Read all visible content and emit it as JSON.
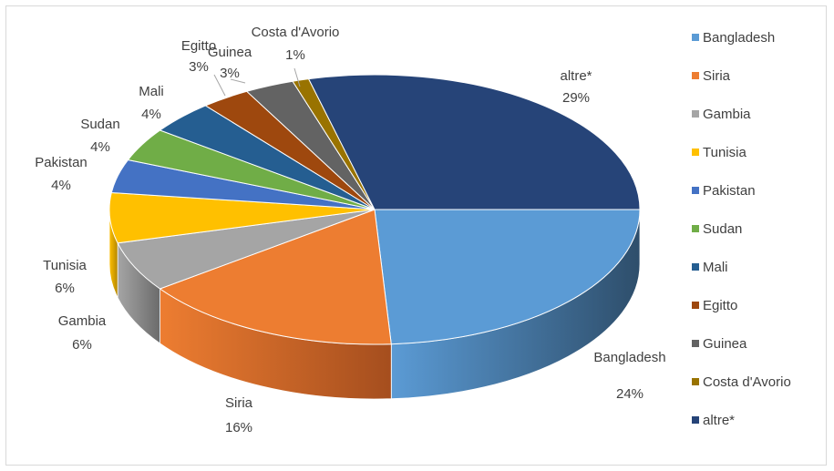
{
  "chart_data": {
    "type": "pie",
    "style": "3d",
    "legend_position": "right",
    "slices": [
      {
        "name": "Bangladesh",
        "value": 24,
        "label": "24%",
        "color": "#5b9bd5",
        "side": "#2e4e6b"
      },
      {
        "name": "Siria",
        "value": 16,
        "label": "16%",
        "color": "#ed7d31",
        "side": "#a54e1e"
      },
      {
        "name": "Gambia",
        "value": 6,
        "label": "6%",
        "color": "#a5a5a5",
        "side": "#6b6b6b"
      },
      {
        "name": "Tunisia",
        "value": 6,
        "label": "6%",
        "color": "#ffc000",
        "side": "#b38600"
      },
      {
        "name": "Pakistan",
        "value": 4,
        "label": "4%",
        "color": "#4472c4",
        "side": "#2a4a82"
      },
      {
        "name": "Sudan",
        "value": 4,
        "label": "4%",
        "color": "#70ad47",
        "side": "#4a752e"
      },
      {
        "name": "Mali",
        "value": 4,
        "label": "4%",
        "color": "#255e91",
        "side": "#173c5e"
      },
      {
        "name": "Egitto",
        "value": 3,
        "label": "3%",
        "color": "#9e480e",
        "side": "#6b2f08"
      },
      {
        "name": "Guinea",
        "value": 3,
        "label": "3%",
        "color": "#636363",
        "side": "#404040"
      },
      {
        "name": "Costa d'Avorio",
        "value": 1,
        "label": "1%",
        "color": "#997300",
        "side": "#664c00"
      },
      {
        "name": "altre*",
        "value": 29,
        "label": "29%",
        "color": "#264478",
        "side": "#1a2f54"
      }
    ]
  }
}
